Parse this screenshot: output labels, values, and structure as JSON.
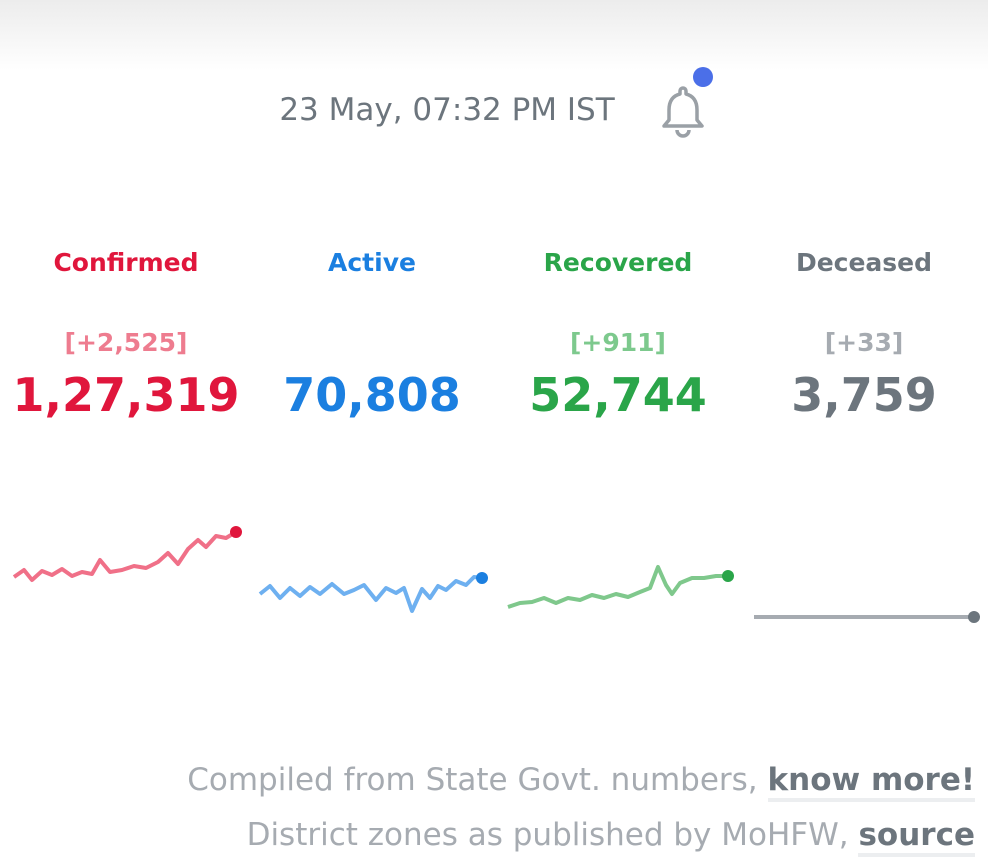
{
  "header": {
    "timestamp": "23 May, 07:32 PM IST"
  },
  "levels": [
    {
      "name": "Confirmed",
      "delta": "[+2,525]",
      "total": "1,27,319"
    },
    {
      "name": "Active",
      "total": "70,808"
    },
    {
      "name": "Recovered",
      "delta": "[+911]",
      "total": "52,744"
    },
    {
      "name": "Deceased",
      "delta": "[+33]",
      "total": "3,759"
    }
  ],
  "footer": {
    "line1": "Compiled from State Govt. numbers,",
    "link1": "know more!",
    "line2": "District zones as published by MoHFW,",
    "link2": "source"
  }
}
